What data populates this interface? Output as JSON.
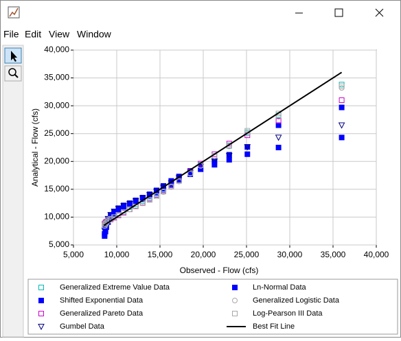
{
  "menu": [
    "File",
    "Edit",
    "View",
    "Window"
  ],
  "chart_data": {
    "type": "scatter",
    "x_label": "Observed - Flow (cfs)",
    "y_label": "Analytical - Flow (cfs)",
    "xlim": [
      5000,
      40000
    ],
    "ylim": [
      5000,
      40000
    ],
    "xticks": [
      {
        "value": 5000,
        "label": "5,000"
      },
      {
        "value": 10000,
        "label": "10,000"
      },
      {
        "value": 15000,
        "label": "15,000"
      },
      {
        "value": 20000,
        "label": "20,000"
      },
      {
        "value": 25000,
        "label": "25,000"
      },
      {
        "value": 30000,
        "label": "30,000"
      },
      {
        "value": 35000,
        "label": "35,000"
      },
      {
        "value": 40000,
        "label": "40,000"
      }
    ],
    "yticks": [
      {
        "value": 5000,
        "label": "5,000"
      },
      {
        "value": 10000,
        "label": "10,000"
      },
      {
        "value": 15000,
        "label": "15,000"
      },
      {
        "value": 20000,
        "label": "20,000"
      },
      {
        "value": 25000,
        "label": "25,000"
      },
      {
        "value": 30000,
        "label": "30,000"
      },
      {
        "value": 35000,
        "label": "35,000"
      },
      {
        "value": 40000,
        "label": "40,000"
      }
    ],
    "grid": true,
    "x": [
      8600,
      8700,
      8800,
      9000,
      9300,
      9700,
      10200,
      10800,
      11500,
      12200,
      13000,
      13800,
      14600,
      15400,
      16300,
      17200,
      18500,
      19700,
      21300,
      23000,
      25100,
      28700,
      36000
    ],
    "series": [
      {
        "name": "Generalized Extreme Value Data",
        "color": "#00b8b8",
        "marker": "square-open",
        "values": [
          8200,
          8600,
          9000,
          9400,
          9800,
          10200,
          10700,
          11200,
          11800,
          12300,
          12900,
          13500,
          14200,
          14900,
          15800,
          16700,
          18000,
          19400,
          21000,
          22800,
          25200,
          28300,
          33800
        ]
      },
      {
        "name": "Shifted Exponential Data",
        "color": "#0000ff",
        "marker": "square",
        "values": [
          7000,
          7900,
          8700,
          9500,
          10300,
          11000,
          11600,
          12100,
          12500,
          13000,
          13500,
          14100,
          14800,
          15600,
          16500,
          17300,
          18300,
          19200,
          20100,
          21200,
          22600,
          26500,
          29700
        ]
      },
      {
        "name": "Generalized Pareto Data",
        "color": "#cc00cc",
        "marker": "square-open",
        "values": [
          8800,
          9000,
          9200,
          9400,
          9600,
          9900,
          10300,
          10800,
          11400,
          12000,
          12600,
          13300,
          14000,
          14800,
          15700,
          16700,
          18200,
          19600,
          21300,
          23200,
          24700,
          27300,
          31000
        ]
      },
      {
        "name": "Gumbel Data",
        "color": "#000080",
        "marker": "triangle-down",
        "values": [
          7600,
          8300,
          9000,
          9700,
          10400,
          11000,
          11500,
          12000,
          12400,
          12900,
          13400,
          14000,
          14600,
          15300,
          16100,
          17000,
          18000,
          19000,
          20000,
          21000,
          22600,
          24300,
          26500
        ]
      },
      {
        "name": "Ln-Normal Data",
        "color": "#0000ff",
        "marker": "square",
        "values": [
          6600,
          7400,
          8200,
          9100,
          9900,
          10600,
          11200,
          11700,
          12200,
          12700,
          13200,
          13800,
          14400,
          15100,
          15900,
          16700,
          17700,
          18600,
          19400,
          20300,
          21300,
          22500,
          24300
        ]
      },
      {
        "name": "Generalized Logistic Data",
        "color": "#a8a8a8",
        "marker": "circle-open",
        "values": [
          8400,
          8700,
          9000,
          9300,
          9600,
          10000,
          10400,
          10900,
          11400,
          11900,
          12500,
          13100,
          13800,
          14500,
          15400,
          16400,
          17800,
          19200,
          20900,
          22700,
          25000,
          28000,
          33200
        ]
      },
      {
        "name": "Log-Pearson III Data",
        "color": "#a8a8a8",
        "marker": "square-open",
        "values": [
          8500,
          8800,
          9100,
          9400,
          9700,
          10000,
          10400,
          10900,
          11400,
          11900,
          12500,
          13100,
          13800,
          14600,
          15500,
          16500,
          17900,
          19300,
          21000,
          22900,
          25500,
          28600,
          33500
        ]
      }
    ],
    "lines": [
      {
        "name": "Best Fit Line",
        "color": "#000000",
        "x": [
          8500,
          36000
        ],
        "values": [
          8500,
          36000
        ]
      }
    ]
  }
}
